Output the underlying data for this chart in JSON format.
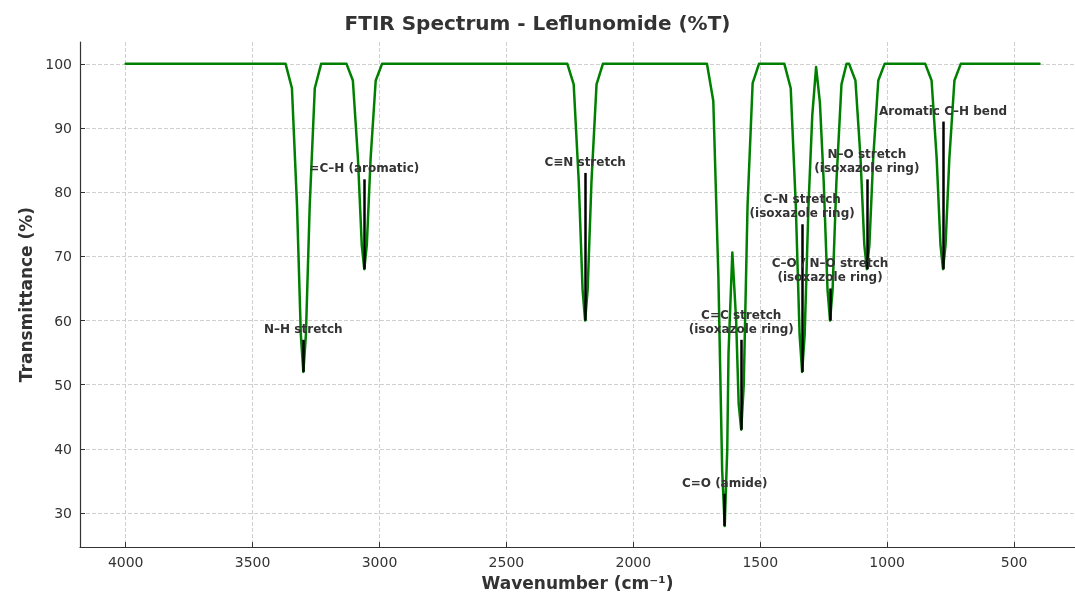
{
  "chart_data": {
    "type": "line",
    "title": "FTIR Spectrum - Leflunomide (%T)",
    "xlabel": "Wavenumber (cm⁻¹)",
    "ylabel": "Transmittance (%)",
    "xlim": [
      4180,
      260
    ],
    "xticks": [
      4000,
      3500,
      3000,
      2500,
      2000,
      1500,
      1000,
      500
    ],
    "ylim": [
      24.7,
      103.4
    ],
    "yticks": [
      30,
      40,
      50,
      60,
      70,
      80,
      90,
      100
    ],
    "grid": true,
    "marker": "none",
    "line_style": "solid",
    "series": [
      {
        "color": "#008000",
        "x": [
          4000,
          3370,
          3345,
          3325,
          3310,
          3300,
          3290,
          3275,
          3255,
          3230,
          3130,
          3105,
          3085,
          3070,
          3060,
          3050,
          3035,
          3015,
          2990,
          2260,
          2235,
          2215,
          2200,
          2190,
          2180,
          2165,
          2145,
          2120,
          1710,
          1685,
          1665,
          1650,
          1640,
          1630,
          1625,
          1610,
          1595,
          1585,
          1575,
          1565,
          1550,
          1530,
          1505,
          1405,
          1380,
          1360,
          1345,
          1335,
          1325,
          1310,
          1295,
          1280,
          1265,
          1250,
          1235,
          1225,
          1215,
          1200,
          1180,
          1160,
          1150,
          1125,
          1105,
          1090,
          1080,
          1070,
          1055,
          1035,
          1010,
          850,
          825,
          805,
          790,
          780,
          770,
          755,
          735,
          710,
          400
        ],
        "values": [
          100,
          100,
          96.2,
          77.9,
          57.8,
          52,
          57.8,
          77.9,
          96.2,
          100,
          100,
          97.4,
          85.3,
          71.8,
          68,
          71.8,
          85.3,
          97.4,
          100,
          100,
          96.8,
          81.6,
          64.8,
          60,
          64.8,
          81.6,
          96.8,
          100,
          100,
          94.2,
          66.9,
          36.6,
          28,
          40,
          55,
          70.6,
          60,
          47,
          43,
          50,
          78,
          97,
          100,
          100,
          96.2,
          77.9,
          57.8,
          52,
          57.8,
          77.9,
          92,
          99.5,
          94,
          81.6,
          64.8,
          60,
          64.8,
          81.6,
          96.8,
          100,
          100,
          97.4,
          85.3,
          71.8,
          68,
          71.8,
          85.3,
          97.4,
          100,
          100,
          97.4,
          85.3,
          71.8,
          68,
          71.8,
          85.3,
          97.4,
          100,
          100
        ]
      }
    ],
    "annotations": [
      {
        "text": "N–H stretch",
        "x": 3300,
        "y": 52
      },
      {
        "text": "=C–H (aromatic)",
        "x": 3060,
        "y": 68
      },
      {
        "text": "C≡N stretch",
        "x": 2190,
        "y": 60
      },
      {
        "text": "C=O (amide)",
        "x": 1640,
        "y": 28
      },
      {
        "text": "C=C stretch\n(isoxazole ring)",
        "x": 1575,
        "y": 43
      },
      {
        "text": "C–N stretch\n(isoxazole ring)",
        "x": 1335,
        "y": 52
      },
      {
        "text": "C–O / N–O stretch\n(isoxazole ring)",
        "x": 1225,
        "y": 60
      },
      {
        "text": "N–O stretch\n(isoxazole ring)",
        "x": 1080,
        "y": 68
      },
      {
        "text": "Aromatic C–H bend",
        "x": 780,
        "y": 68
      }
    ]
  }
}
